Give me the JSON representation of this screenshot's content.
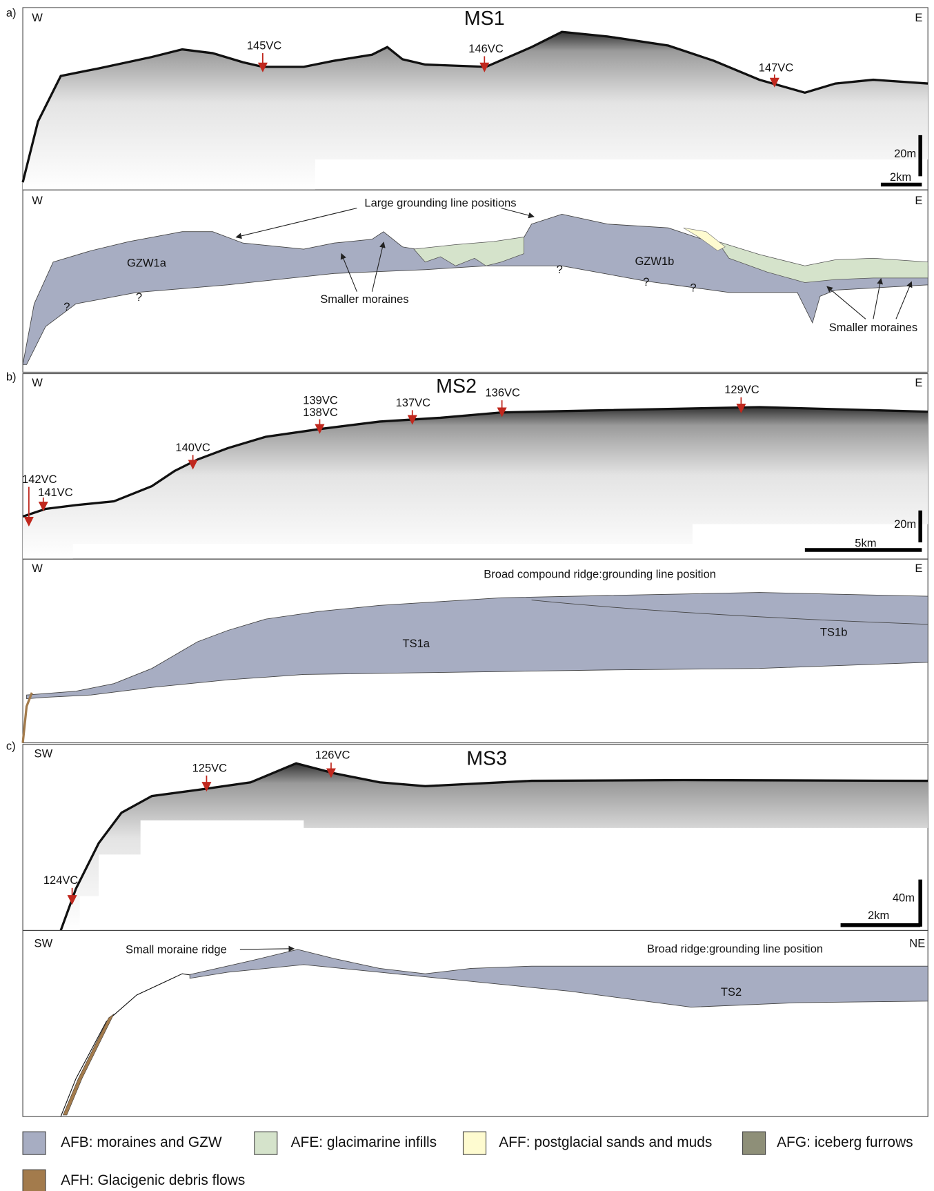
{
  "panels": [
    {
      "letter": "a)",
      "title": "MS1",
      "profile": {
        "left": "W",
        "right": "E",
        "cores": [
          "145VC",
          "146VC",
          "147VC"
        ],
        "vertical_scale": "20m",
        "horizontal_scale": "2km"
      },
      "interpretation": {
        "left": "W",
        "right": "E",
        "annotations": [
          "Large grounding line positions",
          "GZW1a",
          "GZW1b",
          "Smaller moraines",
          "Smaller moraines"
        ],
        "unknowns": [
          "?",
          "?",
          "?",
          "?",
          "?"
        ]
      }
    },
    {
      "letter": "b)",
      "title": "MS2",
      "profile": {
        "left": "W",
        "right": "E",
        "cores": [
          "139VC",
          "138VC",
          "137VC",
          "136VC",
          "129VC",
          "140VC",
          "142VC",
          "141VC"
        ],
        "vertical_scale": "20m",
        "horizontal_scale": "5km"
      },
      "interpretation": {
        "left": "W",
        "right": "E",
        "annotations": [
          "Broad compound ridge:grounding line position",
          "TS1a",
          "TS1b"
        ]
      }
    },
    {
      "letter": "c)",
      "title": "MS3",
      "profile": {
        "left": "SW",
        "cores": [
          "125VC",
          "126VC",
          "124VC"
        ],
        "vertical_scale": "40m",
        "horizontal_scale": "2km"
      },
      "interpretation": {
        "left": "SW",
        "right": "NE",
        "annotations": [
          "Small moraine ridge",
          "Broad ridge:grounding line position",
          "TS2"
        ]
      }
    }
  ],
  "legend": [
    "AFB: moraines and GZW",
    "AFE: glacimarine infills",
    "AFF: postglacial sands and muds",
    "AFG: iceberg furrows",
    "AFH: Glacigenic debris flows"
  ]
}
